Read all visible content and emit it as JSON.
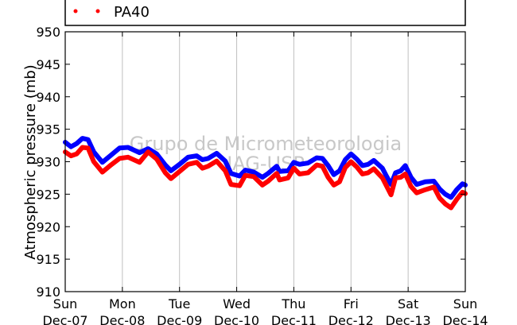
{
  "chart_data": {
    "type": "line",
    "title": "",
    "ylabel": "Atmospheric pressure (mb)",
    "xlabel": "",
    "ylim": [
      910,
      950
    ],
    "yticks": [
      910,
      915,
      920,
      925,
      930,
      935,
      940,
      945,
      950
    ],
    "x_range_days": [
      0,
      7
    ],
    "xticks": [
      {
        "day": "Sun",
        "date": "Dec-07"
      },
      {
        "day": "Mon",
        "date": "Dec-08"
      },
      {
        "day": "Tue",
        "date": "Dec-09"
      },
      {
        "day": "Wed",
        "date": "Dec-10"
      },
      {
        "day": "Thu",
        "date": "Dec-11"
      },
      {
        "day": "Fri",
        "date": "Dec-12"
      },
      {
        "day": "Sat",
        "date": "Dec-13"
      },
      {
        "day": "Sun",
        "date": "Dec-14"
      }
    ],
    "grid": "vertical",
    "series": [
      {
        "name": "",
        "color": "#0000ff",
        "points": [
          [
            0.0,
            933.0
          ],
          [
            0.1,
            932.3
          ],
          [
            0.2,
            932.8
          ],
          [
            0.3,
            933.6
          ],
          [
            0.4,
            933.4
          ],
          [
            0.5,
            931.5
          ],
          [
            0.65,
            929.9
          ],
          [
            0.8,
            931.0
          ],
          [
            0.95,
            932.1
          ],
          [
            1.1,
            932.2
          ],
          [
            1.3,
            931.4
          ],
          [
            1.45,
            932.0
          ],
          [
            1.6,
            931.2
          ],
          [
            1.75,
            929.5
          ],
          [
            1.85,
            928.6
          ],
          [
            2.0,
            929.6
          ],
          [
            2.15,
            930.7
          ],
          [
            2.3,
            930.9
          ],
          [
            2.4,
            930.3
          ],
          [
            2.5,
            930.5
          ],
          [
            2.65,
            931.3
          ],
          [
            2.8,
            930.1
          ],
          [
            2.9,
            928.2
          ],
          [
            3.05,
            927.8
          ],
          [
            3.15,
            928.7
          ],
          [
            3.3,
            928.4
          ],
          [
            3.45,
            927.6
          ],
          [
            3.55,
            928.2
          ],
          [
            3.7,
            929.3
          ],
          [
            3.75,
            928.5
          ],
          [
            3.9,
            928.6
          ],
          [
            4.0,
            929.9
          ],
          [
            4.1,
            929.6
          ],
          [
            4.25,
            929.8
          ],
          [
            4.4,
            930.6
          ],
          [
            4.5,
            930.5
          ],
          [
            4.6,
            929.4
          ],
          [
            4.7,
            928.0
          ],
          [
            4.8,
            928.6
          ],
          [
            4.9,
            930.3
          ],
          [
            5.0,
            931.2
          ],
          [
            5.1,
            930.4
          ],
          [
            5.2,
            929.4
          ],
          [
            5.3,
            929.6
          ],
          [
            5.4,
            930.2
          ],
          [
            5.55,
            929.0
          ],
          [
            5.62,
            927.8
          ],
          [
            5.7,
            926.5
          ],
          [
            5.78,
            928.3
          ],
          [
            5.87,
            928.6
          ],
          [
            5.95,
            929.4
          ],
          [
            6.05,
            927.6
          ],
          [
            6.15,
            926.5
          ],
          [
            6.3,
            926.9
          ],
          [
            6.45,
            927.0
          ],
          [
            6.55,
            925.8
          ],
          [
            6.65,
            925.0
          ],
          [
            6.75,
            924.5
          ],
          [
            6.85,
            925.7
          ],
          [
            6.95,
            926.6
          ],
          [
            7.0,
            926.4
          ]
        ]
      },
      {
        "name": "PA40",
        "color": "#ff0000",
        "points": [
          [
            0.0,
            931.5
          ],
          [
            0.1,
            930.9
          ],
          [
            0.2,
            931.2
          ],
          [
            0.3,
            932.2
          ],
          [
            0.4,
            932.1
          ],
          [
            0.5,
            930.0
          ],
          [
            0.65,
            928.4
          ],
          [
            0.8,
            929.5
          ],
          [
            0.95,
            930.5
          ],
          [
            1.1,
            930.7
          ],
          [
            1.3,
            929.9
          ],
          [
            1.45,
            931.5
          ],
          [
            1.6,
            930.4
          ],
          [
            1.75,
            928.3
          ],
          [
            1.85,
            927.4
          ],
          [
            2.0,
            928.5
          ],
          [
            2.15,
            929.6
          ],
          [
            2.3,
            929.9
          ],
          [
            2.4,
            929.0
          ],
          [
            2.5,
            929.3
          ],
          [
            2.65,
            930.1
          ],
          [
            2.8,
            928.6
          ],
          [
            2.9,
            926.5
          ],
          [
            3.05,
            926.3
          ],
          [
            3.15,
            927.9
          ],
          [
            3.3,
            927.7
          ],
          [
            3.45,
            926.4
          ],
          [
            3.55,
            927.0
          ],
          [
            3.7,
            928.2
          ],
          [
            3.75,
            927.2
          ],
          [
            3.9,
            927.5
          ],
          [
            4.0,
            929.0
          ],
          [
            4.1,
            928.1
          ],
          [
            4.25,
            928.3
          ],
          [
            4.4,
            929.5
          ],
          [
            4.5,
            929.3
          ],
          [
            4.6,
            927.6
          ],
          [
            4.7,
            926.4
          ],
          [
            4.8,
            926.9
          ],
          [
            4.9,
            929.1
          ],
          [
            5.0,
            930.0
          ],
          [
            5.1,
            929.2
          ],
          [
            5.2,
            928.1
          ],
          [
            5.3,
            928.3
          ],
          [
            5.4,
            928.9
          ],
          [
            5.55,
            927.5
          ],
          [
            5.62,
            926.3
          ],
          [
            5.7,
            924.9
          ],
          [
            5.78,
            927.5
          ],
          [
            5.87,
            927.6
          ],
          [
            5.95,
            928.1
          ],
          [
            6.05,
            926.2
          ],
          [
            6.15,
            925.2
          ],
          [
            6.3,
            925.7
          ],
          [
            6.45,
            926.1
          ],
          [
            6.55,
            924.4
          ],
          [
            6.65,
            923.5
          ],
          [
            6.75,
            922.9
          ],
          [
            6.85,
            924.2
          ],
          [
            6.95,
            925.3
          ],
          [
            7.0,
            925.1
          ]
        ]
      }
    ],
    "legend": {
      "placement": "top",
      "entries": [
        "PA40"
      ]
    },
    "watermark": [
      "Grupo de Micrometeorologia",
      "IAG-USP"
    ]
  }
}
